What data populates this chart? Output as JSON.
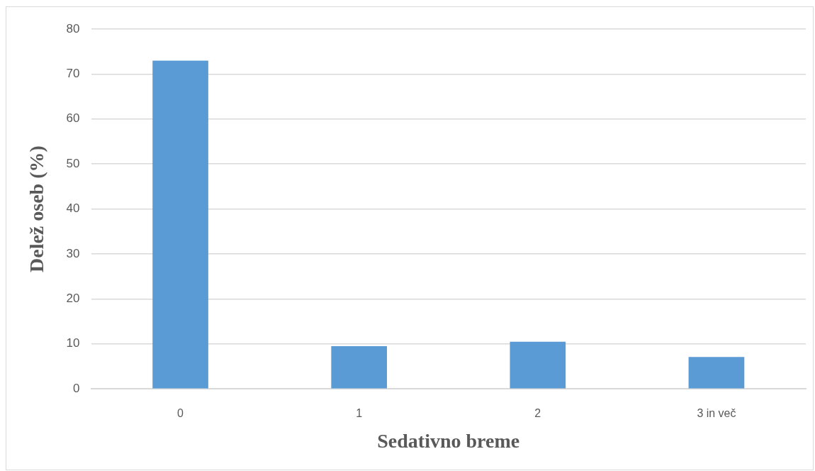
{
  "chart_data": {
    "type": "bar",
    "xlabel": "Sedativno breme",
    "ylabel": "Delež oseb (%)",
    "categories": [
      "0",
      "1",
      "2",
      "3 in več"
    ],
    "values": [
      73.0,
      9.5,
      10.5,
      7.1
    ],
    "color": "#5b9bd5",
    "ylim": [
      0,
      80
    ],
    "yticks": [
      0,
      10,
      20,
      30,
      40,
      50,
      60,
      70,
      80
    ],
    "grid": "y"
  }
}
